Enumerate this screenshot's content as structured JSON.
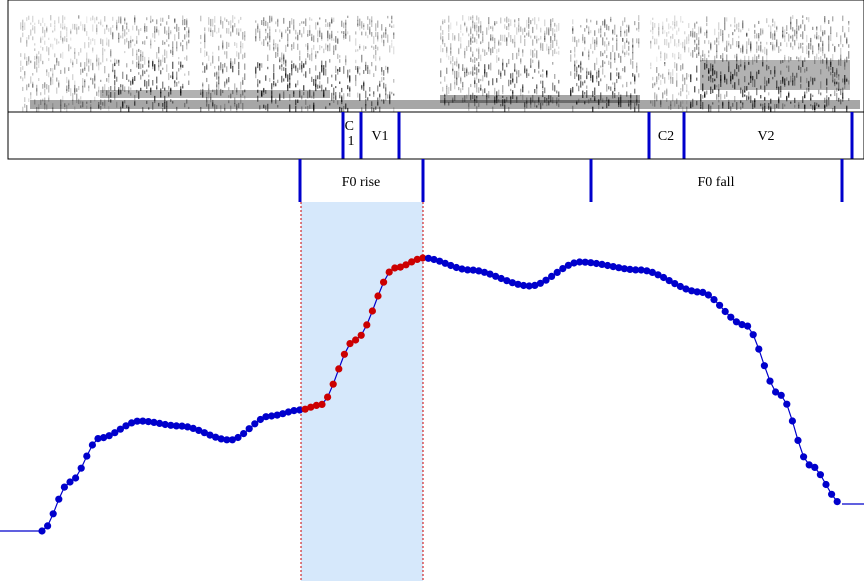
{
  "segments_tier": {
    "labels": [
      {
        "id": "c1",
        "text": "C\n1"
      },
      {
        "id": "v1",
        "text": "V1"
      },
      {
        "id": "c2",
        "text": "C2"
      },
      {
        "id": "v2",
        "text": "V2"
      }
    ]
  },
  "events_tier": {
    "labels": [
      {
        "id": "f0-rise",
        "text": "F0 rise"
      },
      {
        "id": "f0-fall",
        "text": "F0 fall"
      }
    ]
  },
  "colors": {
    "f0_points": "#0000cc",
    "rise_points": "#cc0000",
    "rise_highlight": "#d6e8fb",
    "tier_marker": "#0000cc",
    "boundary_dotted": "#cc0000"
  }
}
